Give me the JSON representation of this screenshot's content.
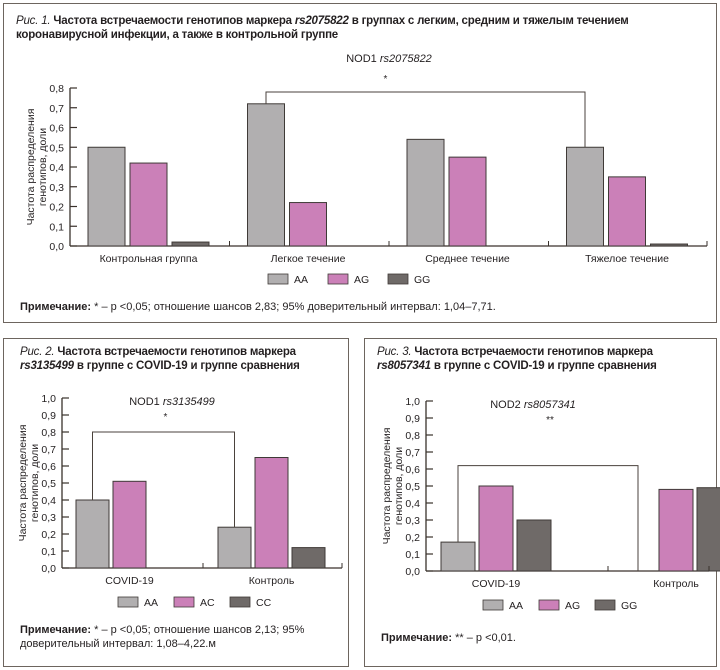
{
  "colors": {
    "AA": "#b1afb0",
    "AG": "#cb80b8",
    "GG": "#6f6a68",
    "frame": "#6d655e",
    "axis": "#3a322c"
  },
  "figures": [
    {
      "caption_prefix": "Рис. 1.",
      "caption_parts": [
        "Частота встречаемости генотипов маркера ",
        "rs2075822",
        " в группах с легким, средним и тяжелым течением коронавирусной инфекции, а также в контрольной группе"
      ],
      "note_label": "Примечание:",
      "note_text": " * – p <0,05; отношение шансов 2,83; 95% доверительный интервал: 1,04–7,71."
    },
    {
      "caption_prefix": "Рис. 2.",
      "caption_parts": [
        "Частота встречаемости генотипов маркера ",
        "rs3135499",
        " в группе с COVID-19 и группе сравнения"
      ],
      "note_label": "Примечание:",
      "note_text": " * – p <0,05; отношение шансов 2,13; 95% доверительный интервал: 1,08–4,22.м"
    },
    {
      "caption_prefix": "Рис. 3.",
      "caption_parts": [
        "Частота встречаемости генотипов маркера ",
        "rs8057341",
        " в группе с COVID-19 и группе сравнения"
      ],
      "note_label": "Примечание:",
      "note_text": "  ** – p <0,01."
    }
  ],
  "chart_data": [
    {
      "type": "bar",
      "title_gene": "NOD1",
      "title_marker": "rs2075822",
      "ylabel": "Частота распределения генотипов, доли",
      "xlabel": "",
      "ylim": [
        0,
        0.8
      ],
      "yticks": [
        "0,0",
        "0,1",
        "0,2",
        "0,3",
        "0,4",
        "0,5",
        "0,6",
        "0,7",
        "0,8"
      ],
      "categories": [
        "Контрольная группа",
        "Легкое течение",
        "Среднее течение",
        "Тяжелое течение"
      ],
      "series": [
        {
          "name": "AA",
          "values": [
            0.5,
            0.72,
            0.54,
            0.5
          ]
        },
        {
          "name": "AG",
          "values": [
            0.42,
            0.22,
            0.45,
            0.35
          ]
        },
        {
          "name": "GG",
          "values": [
            0.02,
            0,
            0,
            0.01
          ]
        }
      ],
      "annotation": {
        "label": "*",
        "from": "Легкое течение AA",
        "to": "Тяжелое течение AA",
        "level": 0.78
      },
      "legend": [
        "AA",
        "AG",
        "GG"
      ],
      "legend_position": "bottom",
      "grid": false
    },
    {
      "type": "bar",
      "title_gene": "NOD1",
      "title_marker": "rs3135499",
      "ylabel": "Частота распределения генотипов, доли",
      "xlabel": "",
      "ylim": [
        0,
        1.0
      ],
      "yticks": [
        "0,0",
        "0,1",
        "0,2",
        "0,3",
        "0,4",
        "0,5",
        "0,6",
        "0,7",
        "0,8",
        "0,9",
        "1,0"
      ],
      "categories": [
        "COVID-19",
        "Контроль"
      ],
      "series": [
        {
          "name": "AA",
          "values": [
            0.4,
            0.24
          ]
        },
        {
          "name": "AC",
          "values": [
            0.51,
            0.65
          ]
        },
        {
          "name": "CC",
          "values": [
            0,
            0.12
          ]
        }
      ],
      "annotation": {
        "label": "*",
        "from": "COVID-19 AA",
        "to": "Контроль AA",
        "level": 0.8
      },
      "legend": [
        "AA",
        "AC",
        "CC"
      ],
      "legend_position": "bottom",
      "grid": false
    },
    {
      "type": "bar",
      "title_gene": "NOD2",
      "title_marker": "rs8057341",
      "ylabel": "Частота распределения генотипов, доли",
      "xlabel": "",
      "ylim": [
        0,
        1.0
      ],
      "yticks": [
        "0,0",
        "0,1",
        "0,2",
        "0,3",
        "0,4",
        "0,5",
        "0,6",
        "0,7",
        "0,8",
        "0,9",
        "1,0"
      ],
      "categories": [
        "COVID-19",
        "Контроль"
      ],
      "series": [
        {
          "name": "AA",
          "values": [
            0.17,
            0
          ]
        },
        {
          "name": "AG",
          "values": [
            0.5,
            0.48
          ]
        },
        {
          "name": "GG",
          "values": [
            0.3,
            0.49
          ]
        }
      ],
      "annotation": {
        "label": "**",
        "from": "COVID-19 AA",
        "to": "Контроль AA",
        "level": 0.62
      },
      "legend": [
        "AA",
        "AG",
        "GG"
      ],
      "legend_position": "bottom",
      "grid": false
    }
  ]
}
